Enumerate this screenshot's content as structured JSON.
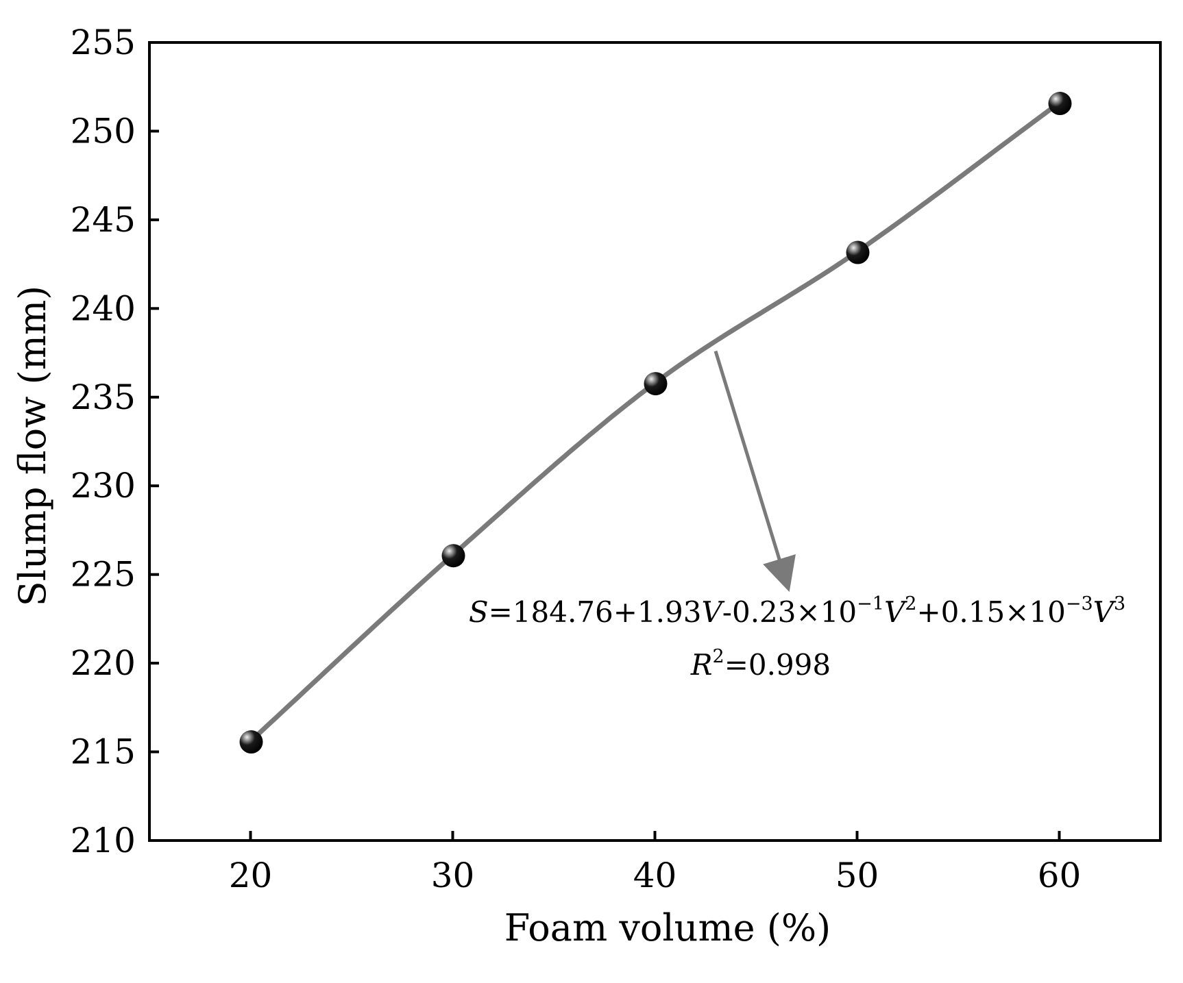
{
  "chart_data": {
    "type": "scatter",
    "xlabel": "Foam volume (%)",
    "ylabel": "Slump flow (mm)",
    "xlim": [
      15,
      65
    ],
    "ylim": [
      210,
      255
    ],
    "xticks": [
      20,
      30,
      40,
      50,
      60
    ],
    "yticks": [
      210,
      215,
      220,
      225,
      230,
      235,
      240,
      245,
      250,
      255
    ],
    "series": [
      {
        "x": [
          20,
          30,
          40,
          50,
          60
        ],
        "y": [
          215.6,
          226.1,
          235.8,
          243.2,
          251.6
        ]
      }
    ],
    "fit": {
      "type": "cubic",
      "coefficients": [
        184.76,
        1.93,
        -0.023,
        0.00015
      ],
      "equation": {
        "s": "S",
        "eq1": "=184.76+1.93",
        "v1": "V",
        "eq2": "-0.23×10",
        "sup1": "−1",
        "v2": "V",
        "sup2": "2",
        "eq3": "+0.15×10",
        "sup3": "−3",
        "v3": "V",
        "sup4": "3"
      },
      "r2": {
        "r": "R",
        "sup": "2",
        "value": "=0.998"
      },
      "arrow_from": [
        43,
        237.6
      ],
      "arrow_to": [
        46.6,
        224.2
      ]
    },
    "colors": {
      "fit_line": "#7a7a7a",
      "marker": "#000000",
      "marker_highlight": "#d8d8d8",
      "axes": "#000000"
    },
    "grid": false,
    "legend": "none"
  }
}
